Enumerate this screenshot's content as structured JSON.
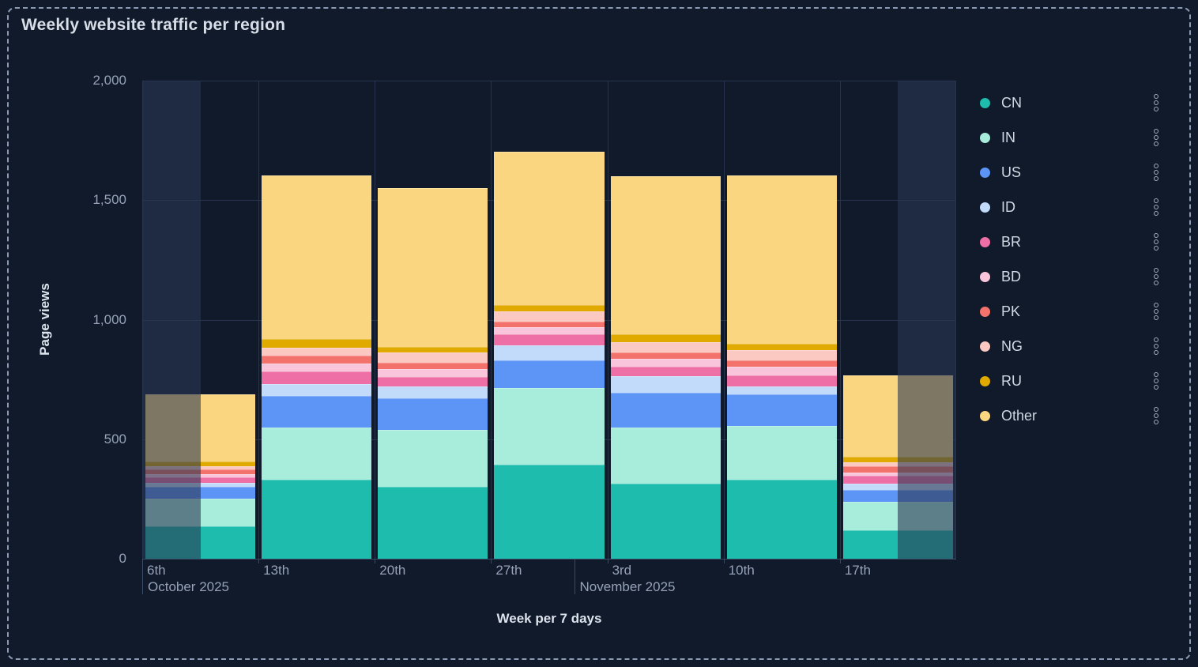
{
  "title": "Weekly website traffic per region",
  "axes": {
    "y_title": "Page views",
    "x_title": "Week per 7 days",
    "y_ticks": [
      {
        "label": "0",
        "value": 0
      },
      {
        "label": "500",
        "value": 500
      },
      {
        "label": "1,000",
        "value": 1000
      },
      {
        "label": "1,500",
        "value": 1500
      },
      {
        "label": "2,000",
        "value": 2000
      }
    ],
    "x_tick_labels": [
      "6th",
      "13th",
      "20th",
      "27th",
      "3rd",
      "10th",
      "17th"
    ],
    "month_labels": [
      {
        "label": "October 2025",
        "day_offset": 0
      },
      {
        "label": "November 2025",
        "day_offset": 26
      }
    ]
  },
  "chart_data": {
    "type": "bar",
    "stacked": true,
    "title": "Weekly website traffic per region",
    "xlabel": "Week per 7 days",
    "ylabel": "Page views",
    "ylim": [
      0,
      2000
    ],
    "grid": true,
    "legend_position": "right",
    "x_domain_days": 49,
    "categories": [
      "Oct 6",
      "Oct 13",
      "Oct 20",
      "Oct 27",
      "Nov 3",
      "Nov 10",
      "Nov 17"
    ],
    "series": [
      {
        "name": "CN",
        "color": "#1dbcad",
        "values": [
          135,
          330,
          300,
          395,
          315,
          330,
          120
        ]
      },
      {
        "name": "IN",
        "color": "#a8ecdc",
        "values": [
          115,
          220,
          240,
          320,
          235,
          225,
          118
        ]
      },
      {
        "name": "US",
        "color": "#5c95f6",
        "values": [
          50,
          130,
          132,
          116,
          144,
          132,
          50
        ]
      },
      {
        "name": "ID",
        "color": "#c3dbfa",
        "values": [
          17,
          50,
          50,
          63,
          69,
          33,
          27
        ]
      },
      {
        "name": "BR",
        "color": "#ee6fa6",
        "values": [
          22,
          52,
          38,
          44,
          41,
          47,
          33
        ]
      },
      {
        "name": "BD",
        "color": "#f9c5da",
        "values": [
          16,
          36,
          33,
          31,
          31,
          35,
          11
        ]
      },
      {
        "name": "PK",
        "color": "#f3736c",
        "values": [
          17,
          33,
          28,
          24,
          27,
          28,
          28
        ]
      },
      {
        "name": "NG",
        "color": "#fcc9c2",
        "values": [
          16,
          32,
          41,
          42,
          44,
          42,
          16
        ]
      },
      {
        "name": "RU",
        "color": "#e0aa00",
        "values": [
          19,
          36,
          25,
          25,
          33,
          27,
          22
        ]
      },
      {
        "name": "Other",
        "color": "#fbd680",
        "values": [
          280,
          685,
          662,
          643,
          661,
          705,
          342
        ]
      }
    ],
    "partial_regions": [
      {
        "from_day": 0,
        "to_day": 3.5
      },
      {
        "from_day": 45.5,
        "to_day": 49
      }
    ]
  },
  "theme": {
    "background": "#101a2b",
    "panel_border": "#8a9ab4",
    "grid": "#263450",
    "axis_line": "#394a64",
    "text_muted": "#96a2b8",
    "text_bright": "#dde3ec",
    "overlay": "rgba(41,55,81,0.6)"
  }
}
